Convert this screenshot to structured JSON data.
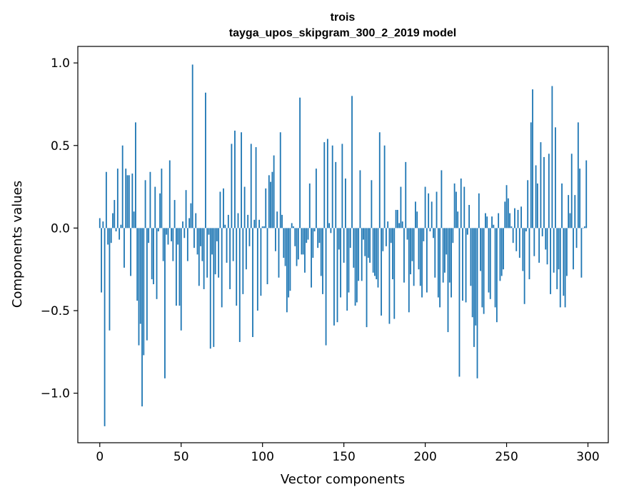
{
  "chart_data": {
    "type": "bar",
    "title_line1": "trois",
    "title_line2": "tayga_upos_skipgram_300_2_2019 model",
    "xlabel": "Vector components",
    "ylabel": "Components values",
    "xlim": [
      -13.5,
      312.5
    ],
    "ylim": [
      -1.3,
      1.1
    ],
    "x_ticks": [
      0,
      50,
      100,
      150,
      200,
      250,
      300
    ],
    "x_tick_labels": [
      "0",
      "50",
      "100",
      "150",
      "200",
      "250",
      "300"
    ],
    "y_ticks": [
      -1.0,
      -0.5,
      0.0,
      0.5,
      1.0
    ],
    "y_tick_labels": [
      "−1.0",
      "−0.5",
      "0.0",
      "0.5",
      "1.0"
    ],
    "bar_color": "#1f77b4",
    "grid": false,
    "values": [
      0.06,
      -0.39,
      0.04,
      -1.2,
      0.34,
      -0.1,
      -0.62,
      -0.09,
      0.09,
      0.17,
      -0.02,
      0.36,
      -0.07,
      0.02,
      0.5,
      -0.24,
      0.36,
      0.32,
      0.32,
      -0.29,
      0.33,
      0.1,
      0.64,
      -0.44,
      -0.71,
      -0.58,
      -1.08,
      -0.77,
      0.29,
      -0.68,
      -0.09,
      0.34,
      -0.31,
      -0.34,
      0.25,
      -0.43,
      -0.02,
      0.21,
      0.36,
      -0.2,
      -0.91,
      -0.04,
      -0.1,
      0.41,
      -0.08,
      -0.2,
      0.17,
      -0.47,
      -0.1,
      -0.47,
      -0.62,
      0.04,
      -0.06,
      0.23,
      -0.2,
      0.06,
      0.15,
      0.99,
      -0.12,
      0.09,
      -0.16,
      -0.35,
      -0.11,
      -0.2,
      -0.37,
      0.82,
      -0.3,
      -0.04,
      -0.73,
      -0.16,
      -0.72,
      -0.28,
      -0.08,
      -0.3,
      0.22,
      -0.48,
      0.24,
      0.02,
      -0.21,
      0.08,
      -0.37,
      0.51,
      -0.2,
      0.59,
      -0.47,
      0.09,
      -0.69,
      0.58,
      -0.4,
      0.25,
      -0.25,
      0.08,
      -0.11,
      0.51,
      -0.66,
      0.05,
      0.49,
      -0.5,
      0.05,
      -0.41,
      0.01,
      0.01,
      0.24,
      -0.34,
      0.32,
      0.28,
      0.34,
      0.44,
      -0.14,
      0.1,
      -0.3,
      0.58,
      0.08,
      -0.18,
      -0.23,
      -0.51,
      -0.42,
      -0.38,
      0.03,
      0.01,
      -0.11,
      -0.23,
      -0.19,
      0.79,
      -0.16,
      -0.16,
      -0.27,
      -0.09,
      -0.07,
      0.27,
      -0.36,
      -0.18,
      -0.02,
      0.36,
      -0.12,
      -0.09,
      -0.29,
      -0.4,
      0.52,
      -0.71,
      0.54,
      0.03,
      -0.03,
      0.5,
      -0.59,
      0.4,
      -0.57,
      -0.13,
      -0.42,
      0.51,
      -0.21,
      0.3,
      -0.5,
      -0.39,
      -0.12,
      0.8,
      -0.24,
      -0.47,
      -0.45,
      -0.32,
      0.35,
      -0.32,
      -0.07,
      -0.17,
      -0.6,
      -0.18,
      -0.21,
      0.29,
      -0.27,
      -0.29,
      -0.31,
      -0.36,
      0.58,
      -0.53,
      -0.14,
      0.5,
      -0.11,
      0.04,
      -0.58,
      -0.09,
      -0.31,
      -0.55,
      0.11,
      0.11,
      0.03,
      0.25,
      0.04,
      -0.33,
      0.4,
      -0.07,
      -0.51,
      -0.28,
      -0.2,
      -0.35,
      0.16,
      0.1,
      -0.25,
      -0.35,
      -0.42,
      -0.08,
      0.25,
      -0.39,
      0.21,
      -0.02,
      0.16,
      -0.06,
      -0.3,
      0.22,
      -0.42,
      -0.48,
      0.35,
      -0.33,
      -0.27,
      -0.16,
      -0.63,
      -0.33,
      -0.42,
      -0.09,
      0.27,
      0.22,
      0.1,
      -0.9,
      0.3,
      -0.44,
      0.25,
      -0.45,
      -0.04,
      0.14,
      -0.35,
      -0.54,
      -0.72,
      -0.59,
      -0.91,
      0.21,
      -0.26,
      -0.48,
      -0.52,
      0.09,
      0.07,
      -0.39,
      -0.43,
      0.07,
      0.02,
      -0.48,
      -0.57,
      0.09,
      -0.32,
      -0.29,
      -0.25,
      0.16,
      0.26,
      0.18,
      0.09,
      0.01,
      -0.09,
      0.12,
      -0.14,
      0.11,
      -0.18,
      0.13,
      -0.26,
      -0.46,
      -0.02,
      0.29,
      -0.31,
      0.64,
      0.84,
      -0.17,
      0.38,
      0.27,
      -0.21,
      0.52,
      -0.05,
      0.43,
      -0.13,
      -0.22,
      0.45,
      -0.4,
      0.86,
      -0.27,
      0.61,
      -0.37,
      -0.25,
      -0.48,
      0.27,
      -0.41,
      -0.48,
      -0.29,
      0.2,
      0.09,
      0.45,
      -0.25,
      0.2,
      -0.12,
      0.64,
      0.36,
      -0.3,
      0.0,
      0.01,
      0.41
    ]
  }
}
